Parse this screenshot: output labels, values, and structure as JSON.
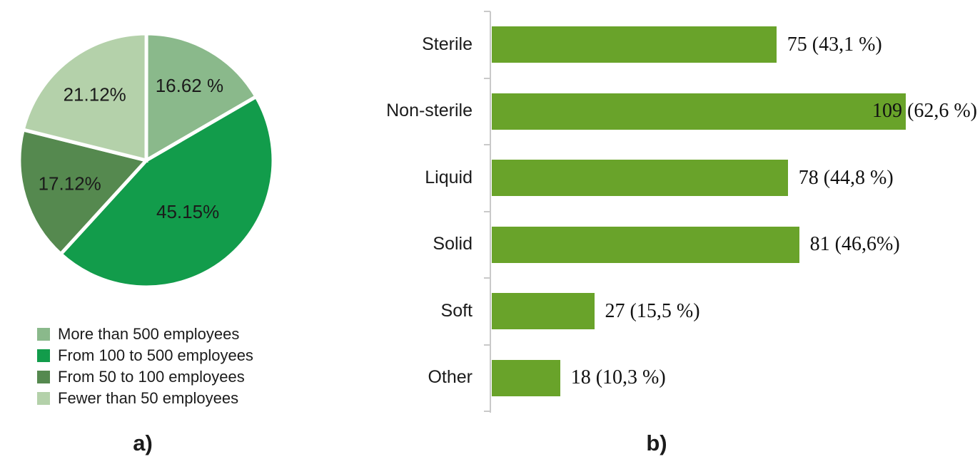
{
  "figure": {
    "background": "#ffffff",
    "panel_a_caption": "a)",
    "panel_b_caption": "b)"
  },
  "chart_data": [
    {
      "type": "pie",
      "panel": "a",
      "title": "",
      "start_angle_deg": 0,
      "direction": "clockwise",
      "stroke_color": "#ffffff",
      "legend_position": "bottom-left",
      "slices": [
        {
          "label": "More than 500 employees",
          "value_pct": 16.62,
          "display": "16.62 %",
          "color": "#8ab98b"
        },
        {
          "label": "From 100 to 500 employees",
          "value_pct": 45.15,
          "display": "45.15%",
          "color": "#129c4b"
        },
        {
          "label": "From 50 to 100 employees",
          "value_pct": 17.12,
          "display": "17.12%",
          "color": "#55894f"
        },
        {
          "label": "Fewer than 50 employees",
          "value_pct": 21.12,
          "display": "21.12%",
          "color": "#b4d1aa"
        }
      ],
      "label_radius_factors": [
        0.68,
        0.52,
        0.63,
        0.66
      ]
    },
    {
      "type": "bar",
      "panel": "b",
      "orientation": "horizontal",
      "title": "",
      "xlabel": "",
      "ylabel": "",
      "grid": false,
      "xlim": [
        0,
        110
      ],
      "bar_color": "#69a32a",
      "axis_color": "#c9c9c9",
      "categories": [
        "Sterile",
        "Non-sterile",
        "Liquid",
        "Solid",
        "Soft",
        "Other"
      ],
      "values": [
        75,
        109,
        78,
        81,
        27,
        18
      ],
      "labels": [
        "75 (43,1 %)",
        "109 (62,6 %)",
        "78 (44,8 %)",
        "81 (46,6%)",
        "27 (15,5 %)",
        "18 (10,3 %)"
      ]
    }
  ]
}
